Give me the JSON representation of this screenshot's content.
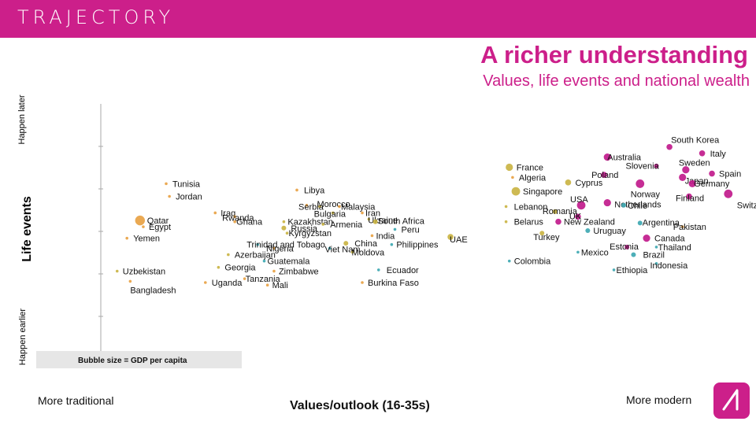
{
  "header": {
    "brand": "TRAJECTORY",
    "title": "A richer understanding",
    "subtitle": "Values, life events and national wealth"
  },
  "axes": {
    "y_main": "Life events",
    "y_top": "Happen later",
    "y_bottom": "Happen earlier",
    "x_main": "Values/outlook (16-35s)",
    "x_left": "More traditional",
    "x_right": "More modern"
  },
  "legend_note": "Bubble size = GDP per capita",
  "colors": {
    "brand": "#cc1f8a",
    "bubble_traditional": "#e8a040",
    "bubble_mid": "#c9b240",
    "bubble_modern": "#c0168a",
    "teal": "#3aa6b0"
  },
  "chart_data": {
    "type": "scatter",
    "title": "Values, life events and national wealth",
    "xlabel": "Values/outlook (16-35s)",
    "ylabel": "Life events",
    "xlim": [
      0,
      100
    ],
    "ylim": [
      0,
      100
    ],
    "size_variable": "GDP per capita",
    "points": [
      {
        "name": "South Korea",
        "x": 87.0,
        "y": 83.0,
        "size": 3,
        "color": "#c0168a",
        "label_dx": 2,
        "label_dy": -9
      },
      {
        "name": "Italy",
        "x": 92.0,
        "y": 80.5,
        "size": 3,
        "color": "#c0168a",
        "label_dx": 10,
        "label_dy": 0
      },
      {
        "name": "Australia",
        "x": 77.5,
        "y": 79.0,
        "size": 4,
        "color": "#c0168a",
        "label_dx": 0,
        "label_dy": 0
      },
      {
        "name": "Slovenia",
        "x": 85.0,
        "y": 75.5,
        "size": 2,
        "color": "#c0168a",
        "label_dx": -39,
        "label_dy": -0.5
      },
      {
        "name": "Sweden",
        "x": 89.5,
        "y": 74.0,
        "size": 4,
        "color": "#c0168a",
        "label_dx": -9,
        "label_dy": -9
      },
      {
        "name": "Spain",
        "x": 93.5,
        "y": 72.5,
        "size": 3,
        "color": "#c0168a",
        "label_dx": 9,
        "label_dy": 0
      },
      {
        "name": "Japan",
        "x": 89.0,
        "y": 71.0,
        "size": 4,
        "color": "#c0168a",
        "label_dx": 3,
        "label_dy": 4
      },
      {
        "name": "Germany",
        "x": 90.5,
        "y": 68.5,
        "size": 4,
        "color": "#c0168a",
        "label_dx": 2,
        "label_dy": -0.5
      },
      {
        "name": "Poland",
        "x": 77.0,
        "y": 72.0,
        "size": 3,
        "color": "#c0168a",
        "label_dx": -16,
        "label_dy": 0
      },
      {
        "name": "Cyprus",
        "x": 71.5,
        "y": 69.0,
        "size": 3,
        "color": "#c9b240",
        "label_dx": 9,
        "label_dy": 0
      },
      {
        "name": "Norway",
        "x": 82.5,
        "y": 68.5,
        "size": 5,
        "color": "#c0168a",
        "label_dx": -12,
        "label_dy": 13
      },
      {
        "name": "Switzerland",
        "x": 96.0,
        "y": 64.5,
        "size": 5,
        "color": "#c0168a",
        "label_dx": 11,
        "label_dy": 14
      },
      {
        "name": "Finland",
        "x": 90.0,
        "y": 63.5,
        "size": 3,
        "color": "#c0168a",
        "label_dx": -17,
        "label_dy": 2
      },
      {
        "name": "Netherlands",
        "x": 77.5,
        "y": 61.0,
        "size": 4,
        "color": "#c0168a",
        "label_dx": 9,
        "label_dy": 2
      },
      {
        "name": "Chile",
        "x": 80.0,
        "y": 60.0,
        "size": 2,
        "color": "#3aa6b0",
        "label_dx": 5,
        "label_dy": 0
      },
      {
        "name": "USA",
        "x": 73.5,
        "y": 60.0,
        "size": 5,
        "color": "#c0168a",
        "label_dx": -14,
        "label_dy": -8
      },
      {
        "name": "France",
        "x": 62.5,
        "y": 75.0,
        "size": 4,
        "color": "#c9b240",
        "label_dx": 9,
        "label_dy": 0
      },
      {
        "name": "Algeria",
        "x": 63.0,
        "y": 71.0,
        "size": 1,
        "color": "#e8a040",
        "label_dx": 8,
        "label_dy": 0
      },
      {
        "name": "Singapore",
        "x": 63.5,
        "y": 65.5,
        "size": 5,
        "color": "#c9b240",
        "label_dx": 9,
        "label_dy": 0
      },
      {
        "name": "Lebanon",
        "x": 62.0,
        "y": 59.5,
        "size": 1,
        "color": "#c9b240",
        "label_dx": 10,
        "label_dy": 0
      },
      {
        "name": "Romania",
        "x": 69.5,
        "y": 57.5,
        "size": 2,
        "color": "#c9b240",
        "label_dx": -16,
        "label_dy": -1
      },
      {
        "name": "UK",
        "x": 73.0,
        "y": 55.5,
        "size": 3,
        "color": "#c0168a",
        "label_dx": -11,
        "label_dy": -1
      },
      {
        "name": "Belarus",
        "x": 62.0,
        "y": 53.5,
        "size": 1,
        "color": "#c9b240",
        "label_dx": 10,
        "label_dy": 0
      },
      {
        "name": "New Zealand",
        "x": 70.0,
        "y": 53.5,
        "size": 3,
        "color": "#c0168a",
        "label_dx": 7,
        "label_dy": 0
      },
      {
        "name": "Argentina",
        "x": 82.5,
        "y": 53.0,
        "size": 2,
        "color": "#3aa6b0",
        "label_dx": 3,
        "label_dy": -1
      },
      {
        "name": "Pakistan",
        "x": 89.0,
        "y": 51.5,
        "size": 1,
        "color": "#e8a040",
        "label_dx": -12,
        "label_dy": 0
      },
      {
        "name": "Uruguay",
        "x": 74.5,
        "y": 50.0,
        "size": 2,
        "color": "#3aa6b0",
        "label_dx": 7,
        "label_dy": 0
      },
      {
        "name": "Turkey",
        "x": 67.5,
        "y": 49.0,
        "size": 2,
        "color": "#c9b240",
        "label_dx": -11,
        "label_dy": 5
      },
      {
        "name": "Canada",
        "x": 83.5,
        "y": 47.0,
        "size": 4,
        "color": "#c0168a",
        "label_dx": 10,
        "label_dy": 0
      },
      {
        "name": "Estonia",
        "x": 80.5,
        "y": 43.5,
        "size": 2,
        "color": "#c0168a",
        "label_dx": -22,
        "label_dy": -1
      },
      {
        "name": "Thailand",
        "x": 85.0,
        "y": 43.5,
        "size": 1,
        "color": "#3aa6b0",
        "label_dx": 2,
        "label_dy": 0
      },
      {
        "name": "Mexico",
        "x": 73.0,
        "y": 41.5,
        "size": 1,
        "color": "#3aa6b0",
        "label_dx": 4,
        "label_dy": 0
      },
      {
        "name": "Brazil",
        "x": 81.5,
        "y": 40.5,
        "size": 2,
        "color": "#3aa6b0",
        "label_dx": 12,
        "label_dy": 0
      },
      {
        "name": "Indonesia",
        "x": 85.0,
        "y": 37.0,
        "size": 1,
        "color": "#3aa6b0",
        "label_dx": -8,
        "label_dy": 2
      },
      {
        "name": "Ethiopia",
        "x": 78.5,
        "y": 34.5,
        "size": 1,
        "color": "#3aa6b0",
        "label_dx": 3,
        "label_dy": 0
      },
      {
        "name": "Colombia",
        "x": 62.5,
        "y": 38.0,
        "size": 1,
        "color": "#3aa6b0",
        "label_dx": 6,
        "label_dy": 0
      },
      {
        "name": "Tunisia",
        "x": 10.0,
        "y": 68.5,
        "size": 1,
        "color": "#e8a040",
        "label_dx": 8,
        "label_dy": 0
      },
      {
        "name": "Jordan",
        "x": 10.5,
        "y": 63.5,
        "size": 1,
        "color": "#e8a040",
        "label_dx": 8,
        "label_dy": 0
      },
      {
        "name": "Libya",
        "x": 30.0,
        "y": 66.0,
        "size": 1,
        "color": "#e8a040",
        "label_dx": 9,
        "label_dy": 0
      },
      {
        "name": "Morocco",
        "x": 31.5,
        "y": 60.0,
        "size": 1,
        "color": "#e8a040",
        "label_dx": 13,
        "label_dy": -2
      },
      {
        "name": "Serbia",
        "x": 33.5,
        "y": 59.5,
        "size": 1,
        "color": "#c9b240",
        "label_dx": -27,
        "label_dy": 0
      },
      {
        "name": "Malaysia",
        "x": 36.5,
        "y": 59.5,
        "size": 1,
        "color": "#e8a040",
        "label_dx": 2,
        "label_dy": 0
      },
      {
        "name": "Bulgaria",
        "x": 35.5,
        "y": 57.0,
        "size": 1,
        "color": "#c9b240",
        "label_dx": -24,
        "label_dy": 1
      },
      {
        "name": "Iran",
        "x": 40.0,
        "y": 57.0,
        "size": 1,
        "color": "#e8a040",
        "label_dx": 4,
        "label_dy": 0
      },
      {
        "name": "Iraq",
        "x": 17.5,
        "y": 57.0,
        "size": 1,
        "color": "#e8a040",
        "label_dx": 7,
        "label_dy": 0
      },
      {
        "name": "Rwanda",
        "x": 20.5,
        "y": 55.5,
        "size": 1,
        "color": "#e8a040",
        "label_dx": -16,
        "label_dy": 1
      },
      {
        "name": "Ghana",
        "x": 20.5,
        "y": 53.5,
        "size": 1,
        "color": "#e8a040",
        "label_dx": 2,
        "label_dy": 0
      },
      {
        "name": "Kazakhstan",
        "x": 28.0,
        "y": 53.5,
        "size": 1,
        "color": "#c9b240",
        "label_dx": 5,
        "label_dy": 0
      },
      {
        "name": "Ukraine",
        "x": 41.0,
        "y": 54.5,
        "size": 1,
        "color": "#c9b240",
        "label_dx": -1,
        "label_dy": 1
      },
      {
        "name": "South Africa",
        "x": 42.0,
        "y": 53.5,
        "size": 2,
        "color": "#c9b240",
        "label_dx": 3,
        "label_dy": -1
      },
      {
        "name": "Armenia",
        "x": 34.0,
        "y": 52.5,
        "size": 1,
        "color": "#c9b240",
        "label_dx": 9,
        "label_dy": 0
      },
      {
        "name": "Qatar",
        "x": 6.0,
        "y": 54.0,
        "size": 6,
        "color": "#e8a040",
        "label_dx": 9,
        "label_dy": 0
      },
      {
        "name": "Egypt",
        "x": 6.5,
        "y": 51.5,
        "size": 1,
        "color": "#e8a040",
        "label_dx": 7,
        "label_dy": 0
      },
      {
        "name": "Russia",
        "x": 28.0,
        "y": 51.0,
        "size": 2,
        "color": "#c9b240",
        "label_dx": 9,
        "label_dy": 0
      },
      {
        "name": "Peru",
        "x": 45.0,
        "y": 50.5,
        "size": 1,
        "color": "#3aa6b0",
        "label_dx": 8,
        "label_dy": 0
      },
      {
        "name": "Kyrgyzstan",
        "x": 28.5,
        "y": 49.0,
        "size": 1,
        "color": "#c9b240",
        "label_dx": 2,
        "label_dy": 0
      },
      {
        "name": "India",
        "x": 41.5,
        "y": 48.0,
        "size": 1,
        "color": "#e8a040",
        "label_dx": 5,
        "label_dy": 0
      },
      {
        "name": "UAE",
        "x": 53.5,
        "y": 47.5,
        "size": 3,
        "color": "#c9b240",
        "label_dx": -1,
        "label_dy": 3
      },
      {
        "name": "Yemen",
        "x": 4.0,
        "y": 47.0,
        "size": 1,
        "color": "#e8a040",
        "label_dx": 8,
        "label_dy": 0
      },
      {
        "name": "China",
        "x": 37.5,
        "y": 45.0,
        "size": 2,
        "color": "#c9b240",
        "label_dx": 11,
        "label_dy": 0
      },
      {
        "name": "Philippines",
        "x": 44.5,
        "y": 44.5,
        "size": 1,
        "color": "#3aa6b0",
        "label_dx": 6,
        "label_dy": 0
      },
      {
        "name": "Trinidad and Tobago",
        "x": 24.0,
        "y": 44.5,
        "size": 1,
        "color": "#3aa6b0",
        "label_dx": -14,
        "label_dy": 0
      },
      {
        "name": "Nigeria",
        "x": 26.5,
        "y": 43.0,
        "size": 1,
        "color": "#e8a040",
        "label_dx": -10,
        "label_dy": 0
      },
      {
        "name": "Viet Nam",
        "x": 35.0,
        "y": 43.0,
        "size": 1,
        "color": "#3aa6b0",
        "label_dx": -6,
        "label_dy": 1
      },
      {
        "name": "Moldova",
        "x": 38.5,
        "y": 41.5,
        "size": 1,
        "color": "#c9b240",
        "label_dx": -1,
        "label_dy": 0
      },
      {
        "name": "Azerbaijan",
        "x": 19.5,
        "y": 40.5,
        "size": 1,
        "color": "#c9b240",
        "label_dx": 8,
        "label_dy": 0
      },
      {
        "name": "Guatemala",
        "x": 25.0,
        "y": 38.0,
        "size": 1,
        "color": "#3aa6b0",
        "label_dx": 4,
        "label_dy": 0
      },
      {
        "name": "Georgia",
        "x": 18.0,
        "y": 35.5,
        "size": 1,
        "color": "#c9b240",
        "label_dx": 8,
        "label_dy": 0
      },
      {
        "name": "Zimbabwe",
        "x": 26.5,
        "y": 34.0,
        "size": 1,
        "color": "#e8a040",
        "label_dx": 6,
        "label_dy": 0
      },
      {
        "name": "Tanzania",
        "x": 22.0,
        "y": 31.0,
        "size": 1,
        "color": "#e8a040",
        "label_dx": 1,
        "label_dy": 0
      },
      {
        "name": "Uganda",
        "x": 16.0,
        "y": 29.5,
        "size": 1,
        "color": "#e8a040",
        "label_dx": 8,
        "label_dy": 0
      },
      {
        "name": "Mali",
        "x": 25.5,
        "y": 28.5,
        "size": 1,
        "color": "#e8a040",
        "label_dx": 6,
        "label_dy": 0
      },
      {
        "name": "Ecuador",
        "x": 42.5,
        "y": 34.5,
        "size": 1,
        "color": "#3aa6b0",
        "label_dx": 10,
        "label_dy": 0
      },
      {
        "name": "Burkina Faso",
        "x": 40.0,
        "y": 29.5,
        "size": 1,
        "color": "#e8a040",
        "label_dx": 7,
        "label_dy": 0
      },
      {
        "name": "Uzbekistan",
        "x": 2.5,
        "y": 34.0,
        "size": 1,
        "color": "#c9b240",
        "label_dx": 7,
        "label_dy": 0
      },
      {
        "name": "Bangladesh",
        "x": 4.5,
        "y": 30.0,
        "size": 1,
        "color": "#e8a040",
        "label_dx": 0,
        "label_dy": 11
      }
    ]
  }
}
